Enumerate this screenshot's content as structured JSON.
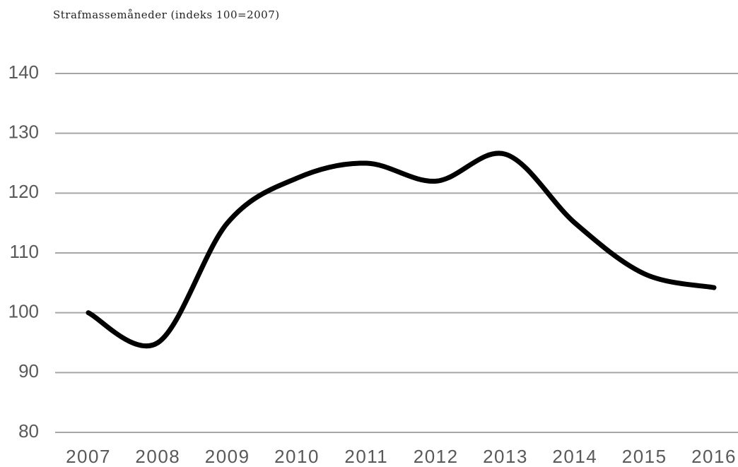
{
  "chart_data": {
    "type": "line",
    "y_label": "Strafmassemåneder (indeks 100=2007)",
    "categories": [
      "2007",
      "2008",
      "2009",
      "2010",
      "2011",
      "2012",
      "2013",
      "2014",
      "2015",
      "2016"
    ],
    "values": [
      100,
      95,
      115,
      122.5,
      125,
      122,
      126.5,
      115,
      106.5,
      104.2
    ],
    "color": "#000000",
    "ylim": [
      80,
      140
    ],
    "yticks": [
      80,
      90,
      100,
      110,
      120,
      130,
      140
    ],
    "grid": true
  }
}
